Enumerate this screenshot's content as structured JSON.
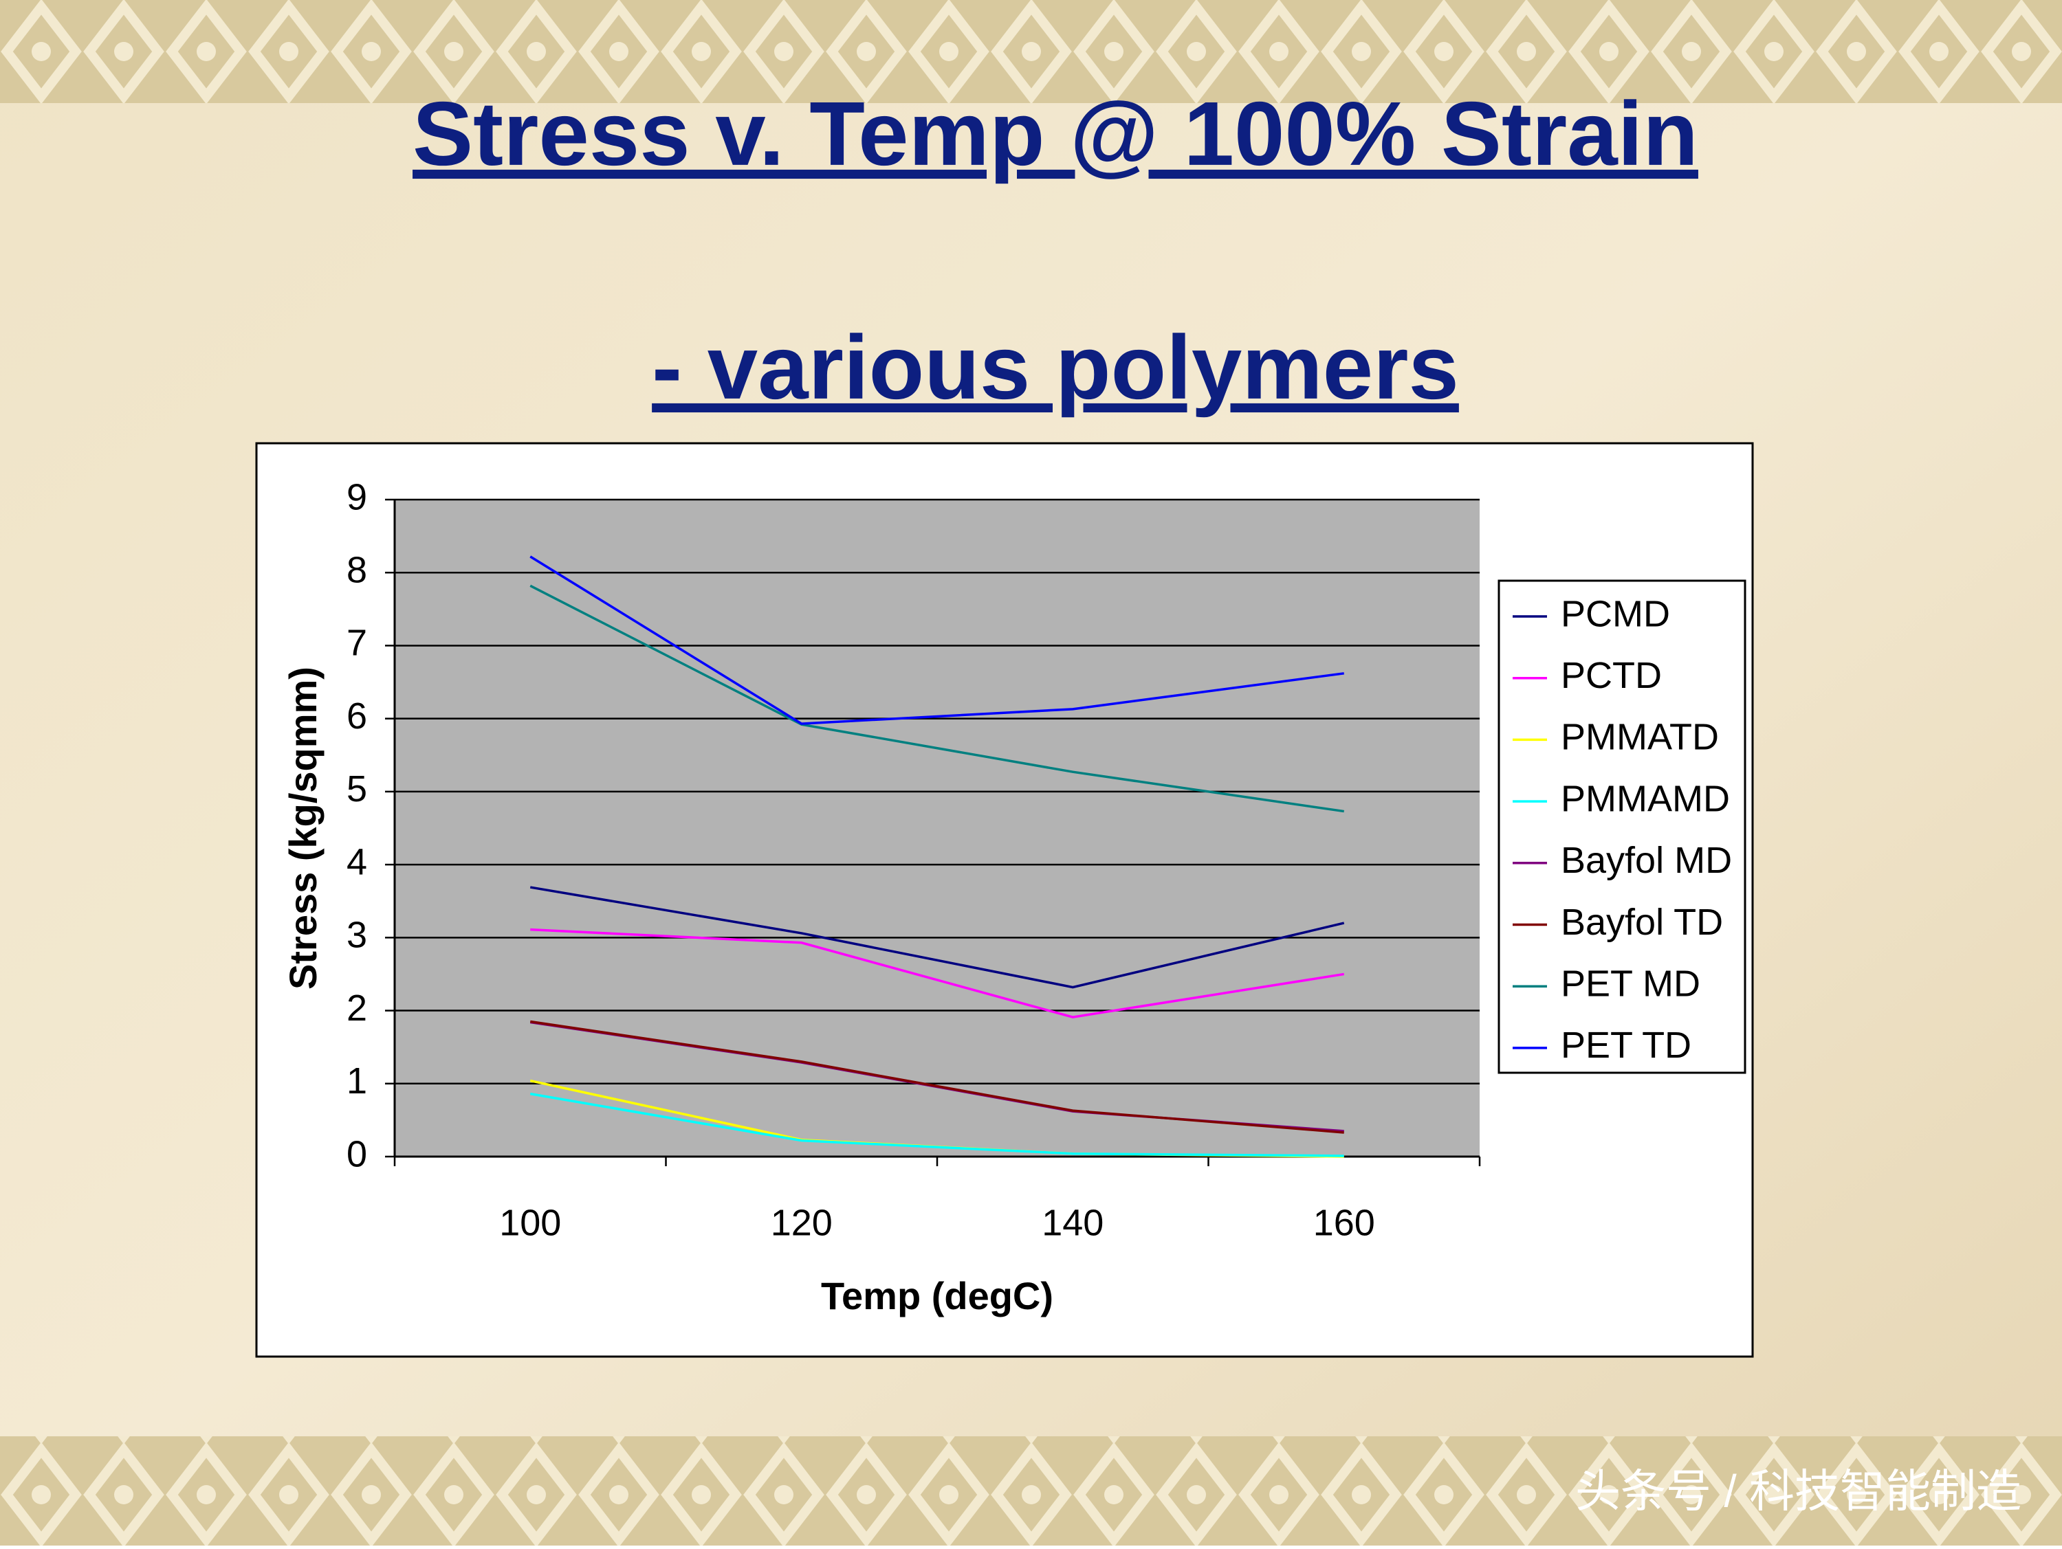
{
  "chart_data": {
    "type": "line",
    "title": "Stress v. Temp @ 100% Strain",
    "subtitle": "- various polymers",
    "xlabel": "Temp (degC)",
    "ylabel": "Stress (kg/sqmm)",
    "categories": [
      "100",
      "120",
      "140",
      "160"
    ],
    "ylim": [
      0,
      9
    ],
    "yticks": [
      0,
      1,
      2,
      3,
      4,
      5,
      6,
      7,
      8,
      9
    ],
    "grid": true,
    "legend": "right",
    "series": [
      {
        "name": "PCMD",
        "color": "#000080",
        "values": [
          3.69,
          3.06,
          2.32,
          3.2
        ]
      },
      {
        "name": "PCTD",
        "color": "#ff00ff",
        "values": [
          3.11,
          2.93,
          1.91,
          2.5
        ]
      },
      {
        "name": "PMMATD",
        "color": "#ffff00",
        "values": [
          1.04,
          0.23,
          0.04,
          0
        ]
      },
      {
        "name": "PMMAMD",
        "color": "#00ffff",
        "values": [
          0.86,
          0.22,
          0.04,
          0.01
        ]
      },
      {
        "name": "Bayfol MD",
        "color": "#800080",
        "values": [
          1.84,
          1.29,
          0.62,
          0.35
        ]
      },
      {
        "name": "Bayfol TD",
        "color": "#800000",
        "values": [
          1.85,
          1.3,
          0.63,
          0.33
        ]
      },
      {
        "name": "PET MD",
        "color": "#008080",
        "values": [
          7.82,
          5.92,
          5.27,
          4.73
        ]
      },
      {
        "name": "PET TD",
        "color": "#0000ff",
        "values": [
          8.22,
          5.93,
          6.13,
          6.62
        ]
      }
    ]
  },
  "watermark": "头条号 / 科技智能制造"
}
